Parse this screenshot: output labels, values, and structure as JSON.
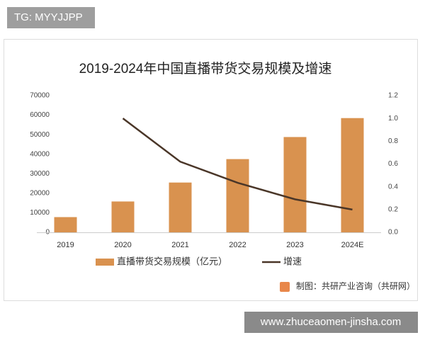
{
  "overlay": {
    "tag": "TG: MYYJJPP",
    "url": "www.zhuceaomen-jinsha.com"
  },
  "chart_data": {
    "type": "bar-line",
    "title": "2019-2024年中国直播带货交易规模及增速",
    "categories": [
      "2019",
      "2020",
      "2021",
      "2022",
      "2023",
      "2024E"
    ],
    "series": [
      {
        "name": "直播带货交易规模（亿元）",
        "type": "bar",
        "color": "#d9924f",
        "values": [
          7800,
          15800,
          25500,
          37500,
          48800,
          58500
        ]
      },
      {
        "name": "增速",
        "type": "line",
        "axis": "y2",
        "color": "#4a3628",
        "values": [
          null,
          1.0,
          0.62,
          0.435,
          0.29,
          0.2
        ]
      }
    ],
    "ylim": [
      0,
      70000
    ],
    "yticks": [
      0,
      10000,
      20000,
      30000,
      40000,
      50000,
      60000,
      70000
    ],
    "y2lim": [
      0,
      1.2
    ],
    "y2ticks": [
      {
        "value": 0,
        "label": "0.0"
      },
      0.2,
      0.4,
      0.6,
      0.8,
      {
        "value": 1,
        "label": "1.0"
      },
      1.2
    ],
    "grid": false,
    "legend": "bottom",
    "source": "制图：共研产业咨询（共研网）"
  }
}
